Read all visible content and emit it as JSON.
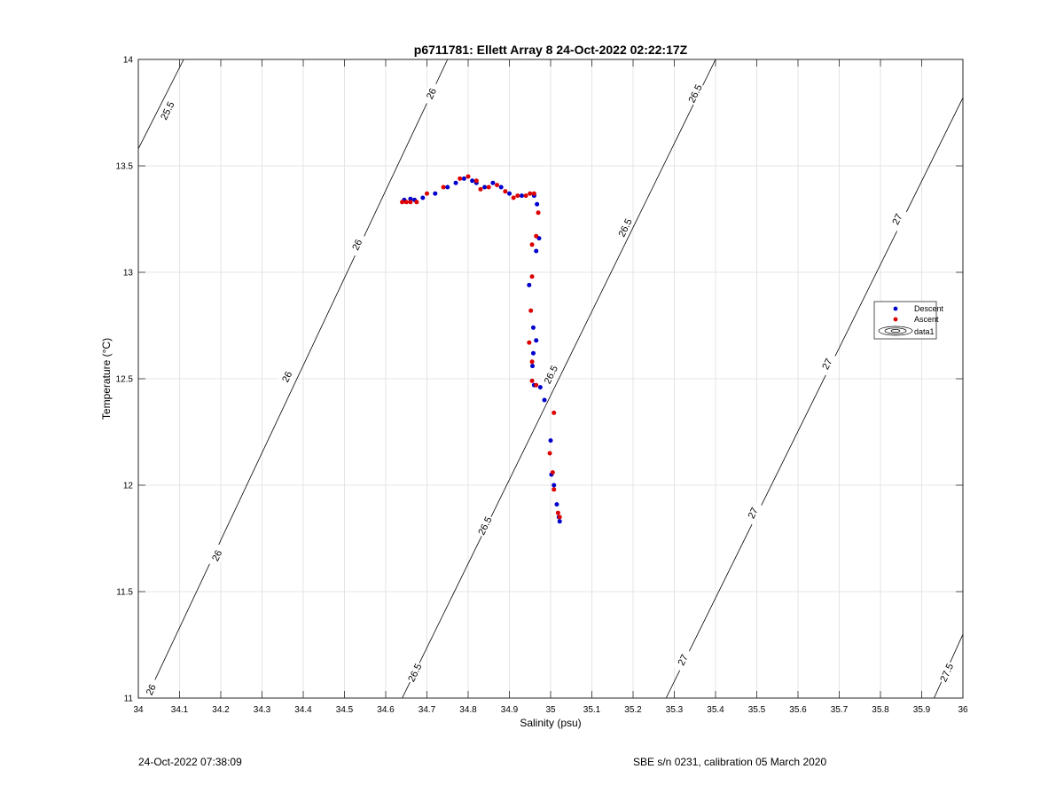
{
  "figure": {
    "timestamp_left": "24-Oct-2022 07:38:09",
    "calibration_right": "SBE s/n 0231, calibration 05 March 2020"
  },
  "chart_data": {
    "type": "scatter",
    "title": "p6711781: Ellett Array 8 24-Oct-2022 02:22:17Z",
    "xlabel": "Salinity (psu)",
    "ylabel": "Temperature (°C)",
    "xlim": [
      34,
      36
    ],
    "ylim": [
      11,
      14
    ],
    "x_ticks": [
      "34",
      "34.1",
      "34.2",
      "34.3",
      "34.4",
      "34.5",
      "34.6",
      "34.7",
      "34.8",
      "34.9",
      "35",
      "35.1",
      "35.2",
      "35.3",
      "35.4",
      "35.5",
      "35.6",
      "35.7",
      "35.8",
      "35.9",
      "36"
    ],
    "y_ticks": [
      "11",
      "11.5",
      "12",
      "12.5",
      "13",
      "13.5",
      "14"
    ],
    "grid": true,
    "legend_position": "right",
    "series": [
      {
        "name": "Descent",
        "color": "#0000cc",
        "points": [
          [
            34.645,
            13.34
          ],
          [
            34.66,
            13.345
          ],
          [
            34.67,
            13.34
          ],
          [
            34.69,
            13.35
          ],
          [
            34.72,
            13.37
          ],
          [
            34.75,
            13.4
          ],
          [
            34.77,
            13.42
          ],
          [
            34.79,
            13.44
          ],
          [
            34.81,
            13.43
          ],
          [
            34.82,
            13.42
          ],
          [
            34.84,
            13.4
          ],
          [
            34.86,
            13.42
          ],
          [
            34.88,
            13.4
          ],
          [
            34.9,
            13.37
          ],
          [
            34.93,
            13.36
          ],
          [
            34.96,
            13.36
          ],
          [
            34.967,
            13.32
          ],
          [
            34.972,
            13.16
          ],
          [
            34.965,
            13.1
          ],
          [
            34.948,
            12.94
          ],
          [
            34.958,
            12.74
          ],
          [
            34.965,
            12.68
          ],
          [
            34.958,
            12.62
          ],
          [
            34.956,
            12.56
          ],
          [
            34.96,
            12.47
          ],
          [
            34.975,
            12.46
          ],
          [
            34.985,
            12.4
          ],
          [
            35.0,
            12.21
          ],
          [
            35.002,
            12.05
          ],
          [
            35.008,
            12.0
          ],
          [
            35.015,
            11.91
          ],
          [
            35.02,
            11.85
          ],
          [
            35.022,
            11.83
          ]
        ]
      },
      {
        "name": "Ascent",
        "color": "#dd0000",
        "points": [
          [
            34.64,
            13.33
          ],
          [
            34.65,
            13.33
          ],
          [
            34.66,
            13.33
          ],
          [
            34.675,
            13.33
          ],
          [
            34.7,
            13.37
          ],
          [
            34.74,
            13.4
          ],
          [
            34.78,
            13.44
          ],
          [
            34.8,
            13.45
          ],
          [
            34.82,
            13.43
          ],
          [
            34.83,
            13.39
          ],
          [
            34.85,
            13.4
          ],
          [
            34.87,
            13.41
          ],
          [
            34.89,
            13.38
          ],
          [
            34.91,
            13.35
          ],
          [
            34.92,
            13.36
          ],
          [
            34.94,
            13.36
          ],
          [
            34.95,
            13.37
          ],
          [
            34.96,
            13.37
          ],
          [
            34.97,
            13.28
          ],
          [
            34.965,
            13.17
          ],
          [
            34.955,
            13.13
          ],
          [
            34.955,
            12.98
          ],
          [
            34.952,
            12.82
          ],
          [
            34.948,
            12.67
          ],
          [
            34.955,
            12.58
          ],
          [
            34.955,
            12.49
          ],
          [
            34.965,
            12.47
          ],
          [
            35.008,
            12.34
          ],
          [
            34.998,
            12.15
          ],
          [
            35.005,
            12.06
          ],
          [
            35.008,
            11.98
          ],
          [
            35.018,
            11.87
          ],
          [
            35.022,
            11.85
          ]
        ]
      },
      {
        "name": "data1",
        "color": "#000000",
        "contour_labels": [
          "25.5",
          "26",
          "26.5",
          "27",
          "27.5"
        ]
      }
    ]
  }
}
